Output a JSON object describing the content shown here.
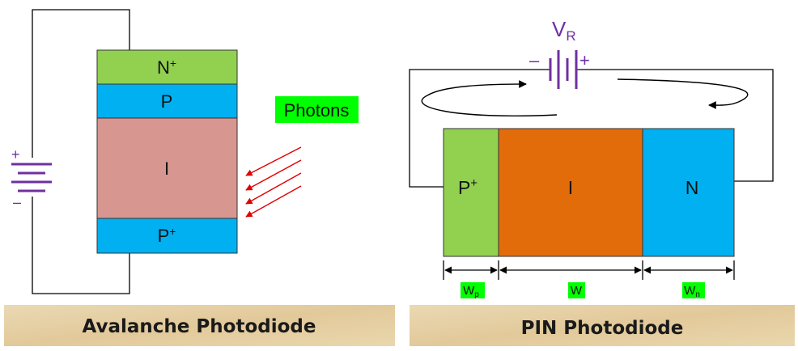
{
  "avalanche": {
    "layers": {
      "n_plus": {
        "base": "N",
        "sup": "+"
      },
      "p": "P",
      "i": "I",
      "p_plus": {
        "base": "P",
        "sup": "+"
      }
    },
    "battery": {
      "plus": "+",
      "minus": "–"
    },
    "photons_label": "Photons",
    "caption": "Avalanche Photodiode"
  },
  "pin": {
    "voltage": {
      "base": "V",
      "sub": "R"
    },
    "battery": {
      "plus": "+",
      "minus": "–"
    },
    "regions": {
      "p_plus": {
        "base": "P",
        "sup": "+"
      },
      "i": "I",
      "n": "N"
    },
    "widths": {
      "wp": {
        "base": "W",
        "sub": "p"
      },
      "w": "W",
      "wn": {
        "base": "W",
        "sub": "n"
      }
    },
    "caption": "PIN Photodiode"
  },
  "colors": {
    "green_layer": "#92d050",
    "blue_layer": "#00b0f0",
    "pink_layer": "#d79690",
    "orange_layer": "#e36c0a",
    "battery": "#7030a0",
    "photon_arrow": "#e00000",
    "highlight": "#00ff00",
    "caption_bg": "#e8d3a8"
  }
}
